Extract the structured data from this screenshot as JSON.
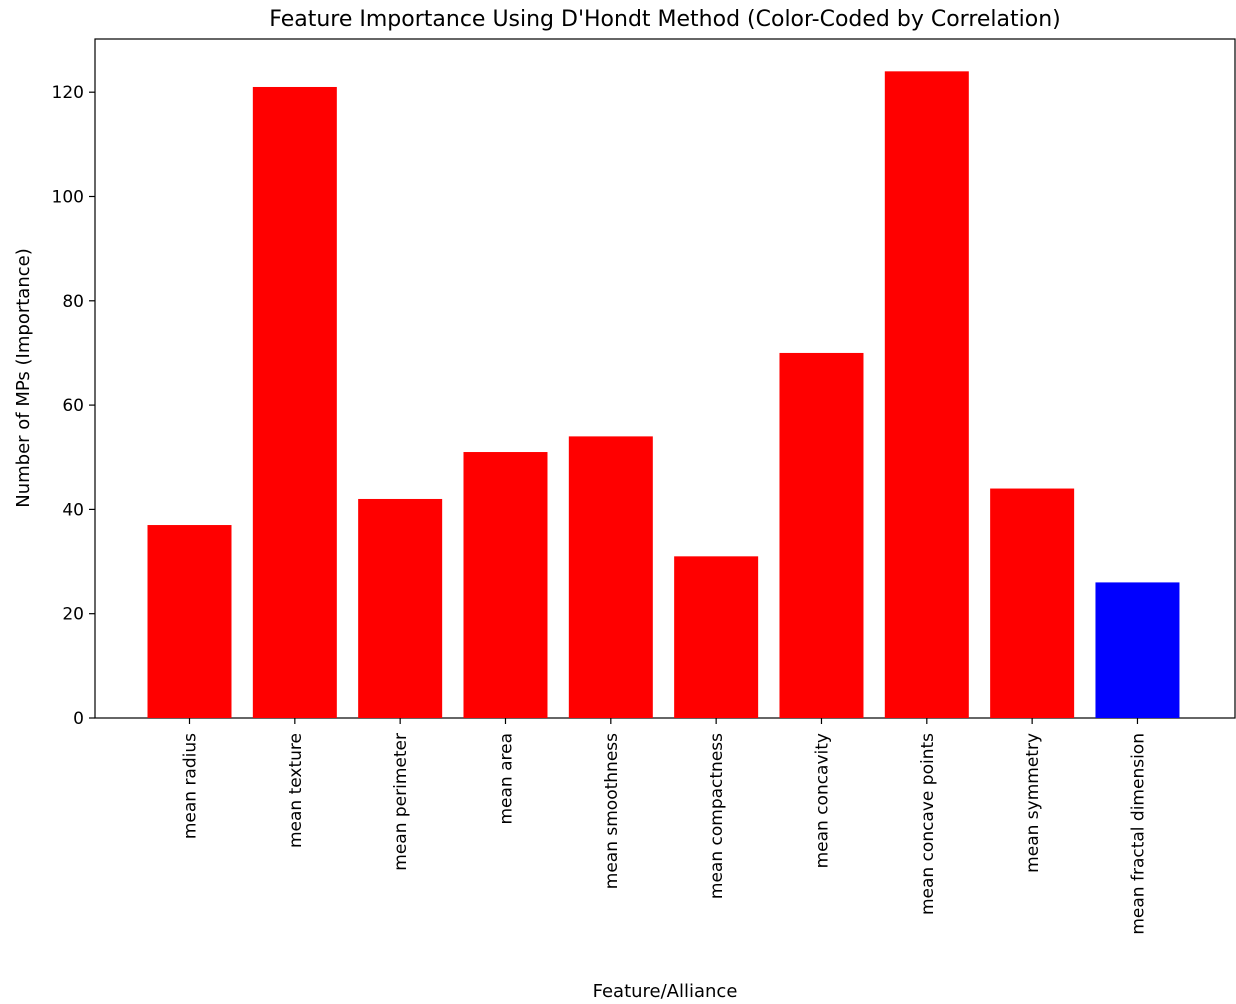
{
  "chart_data": {
    "type": "bar",
    "title": "Feature Importance Using D'Hondt Method (Color-Coded by Correlation)",
    "xlabel": "Feature/Alliance",
    "ylabel": "Number of MPs (Importance)",
    "categories": [
      "mean radius",
      "mean texture",
      "mean perimeter",
      "mean area",
      "mean smoothness",
      "mean compactness",
      "mean concavity",
      "mean concave points",
      "mean symmetry",
      "mean fractal dimension"
    ],
    "values": [
      37,
      121,
      42,
      51,
      54,
      31,
      70,
      124,
      44,
      26
    ],
    "bar_colors": [
      "#ff0000",
      "#ff0000",
      "#ff0000",
      "#ff0000",
      "#ff0000",
      "#ff0000",
      "#ff0000",
      "#ff0000",
      "#ff0000",
      "#0000ff"
    ],
    "yticks": [
      0,
      20,
      40,
      60,
      80,
      100,
      120
    ],
    "ylim": [
      0,
      130.2
    ],
    "grid": false,
    "legend": "none"
  }
}
